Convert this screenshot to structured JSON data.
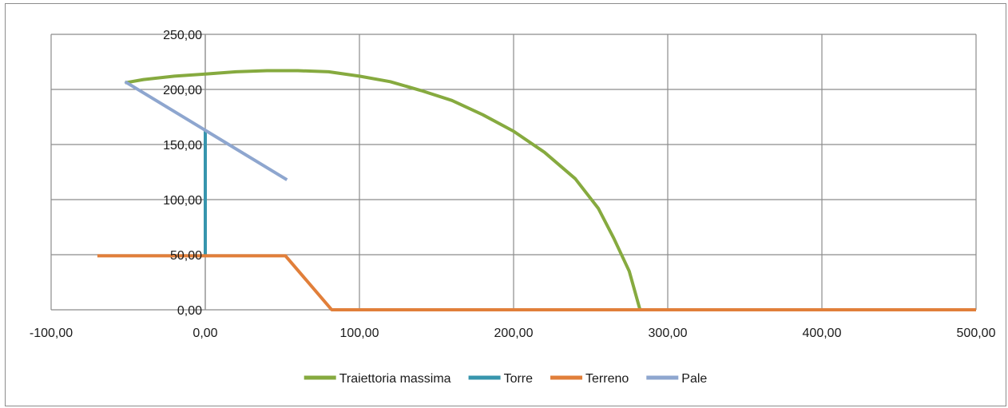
{
  "chart_data": {
    "type": "line",
    "title": "",
    "xlabel": "",
    "ylabel": "",
    "xlim": [
      -100,
      500
    ],
    "ylim": [
      0,
      250
    ],
    "x_ticks": [
      -100,
      0,
      100,
      200,
      300,
      400,
      500
    ],
    "x_tick_labels": [
      "-100,00",
      "0,00",
      "100,00",
      "200,00",
      "300,00",
      "400,00",
      "500,00"
    ],
    "y_ticks": [
      0,
      50,
      100,
      150,
      200,
      250
    ],
    "y_tick_labels": [
      "0,00",
      "50,00",
      "100,00",
      "150,00",
      "200,00",
      "250,00"
    ],
    "grid": true,
    "legend_position": "bottom",
    "series": [
      {
        "name": "Traiettoria massima",
        "color": "#86aa3f",
        "points": [
          [
            -52,
            206
          ],
          [
            -40,
            209
          ],
          [
            -20,
            212
          ],
          [
            0,
            214
          ],
          [
            20,
            216
          ],
          [
            40,
            217
          ],
          [
            60,
            217
          ],
          [
            80,
            216
          ],
          [
            100,
            212
          ],
          [
            120,
            207
          ],
          [
            140,
            199
          ],
          [
            160,
            190
          ],
          [
            180,
            177
          ],
          [
            200,
            162
          ],
          [
            220,
            143
          ],
          [
            240,
            119
          ],
          [
            255,
            92
          ],
          [
            265,
            65
          ],
          [
            275,
            35
          ],
          [
            282,
            0
          ]
        ]
      },
      {
        "name": "Torre",
        "color": "#3795ad",
        "points": [
          [
            0,
            50
          ],
          [
            0,
            163
          ]
        ]
      },
      {
        "name": "Terreno",
        "color": "#e17f3a",
        "points": [
          [
            -70,
            49
          ],
          [
            52,
            49
          ],
          [
            82,
            0
          ],
          [
            500,
            0
          ]
        ]
      },
      {
        "name": "Pale",
        "color": "#8ea6cf",
        "points": [
          [
            -52,
            207
          ],
          [
            53,
            118
          ]
        ]
      }
    ]
  }
}
